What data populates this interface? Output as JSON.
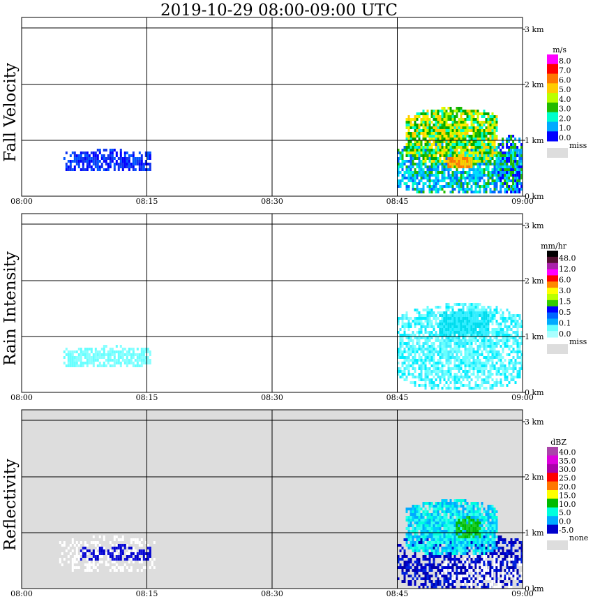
{
  "title": "2019-10-29   08:00-09:00 UTC",
  "chart_data": [
    {
      "type": "heatmap",
      "name": "Fall Velocity",
      "ylabel": "Fall Velocity",
      "background": "#ffffff",
      "x_ticks": [
        "08:00",
        "08:15",
        "08:30",
        "08:45",
        "09:00"
      ],
      "y_ticks": [
        "0 km",
        "1 km",
        "2 km",
        "3 km"
      ],
      "ylim_km": [
        0,
        3.5
      ],
      "grid": true,
      "colorbar": {
        "unit": "m/s",
        "labels": [
          "8.0",
          "7.0",
          "6.0",
          "5.0",
          "4.0",
          "3.0",
          "2.0",
          "1.0",
          "0.0"
        ],
        "colors": [
          "#ff00ff",
          "#ff0000",
          "#ff7700",
          "#ffcc00",
          "#bbff00",
          "#22bb00",
          "#00ffcc",
          "#00aaff",
          "#0000ff"
        ],
        "missing_label": "miss",
        "missing_color": "#dddddd"
      },
      "regions": [
        {
          "t0": 5,
          "t1": 15.5,
          "h0": 0.45,
          "h1": 0.85,
          "colors": [
            "#0000ff",
            "#0055ff",
            "#1133ee"
          ],
          "density": 0.7
        },
        {
          "t0": 45,
          "t1": 60,
          "h0": 0.05,
          "h1": 1.0,
          "colors": [
            "#00aaff",
            "#00ffcc",
            "#22bb00",
            "#0066ff",
            "#00ddff"
          ],
          "density": 0.75
        },
        {
          "t0": 46,
          "t1": 57,
          "h0": 0.6,
          "h1": 1.6,
          "colors": [
            "#22bb00",
            "#bbff00",
            "#ffcc00",
            "#00ffcc",
            "#ffee00",
            "#00aa00"
          ],
          "density": 0.85
        },
        {
          "t0": 51,
          "t1": 54,
          "h0": 0.5,
          "h1": 0.75,
          "colors": [
            "#ff7700",
            "#ffcc00"
          ],
          "density": 0.9
        },
        {
          "t0": 57,
          "t1": 60,
          "h0": 0.05,
          "h1": 1.1,
          "colors": [
            "#0000ff",
            "#00aaff",
            "#22bb00"
          ],
          "density": 0.6
        }
      ]
    },
    {
      "type": "heatmap",
      "name": "Rain Intensity",
      "ylabel": "Rain Intensity",
      "background": "#ffffff",
      "x_ticks": [
        "08:00",
        "08:15",
        "08:30",
        "08:45",
        "09:00"
      ],
      "y_ticks": [
        "0 km",
        "1 km",
        "2 km",
        "3 km"
      ],
      "ylim_km": [
        0,
        3.5
      ],
      "grid": true,
      "colorbar": {
        "unit": "mm/hr",
        "labels": [
          "48.0",
          "12.0",
          "6.0",
          "3.0",
          "1.5",
          "0.5",
          "0.1",
          "0.0"
        ],
        "colors": [
          "#000000",
          "#551133",
          "#aa22aa",
          "#ff00ff",
          "#ff0000",
          "#ff8800",
          "#ffff00",
          "#bbff00",
          "#33cc00",
          "#0000ff",
          "#0066ff",
          "#00aaff",
          "#66ffff",
          "#aaffff"
        ],
        "missing_label": "miss",
        "missing_color": "#dddddd"
      },
      "regions": [
        {
          "t0": 5,
          "t1": 15.5,
          "h0": 0.45,
          "h1": 0.85,
          "colors": [
            "#66ffff",
            "#88ffff"
          ],
          "density": 0.7
        },
        {
          "t0": 45,
          "t1": 60,
          "h0": 0.05,
          "h1": 1.6,
          "colors": [
            "#66ffff",
            "#88ffff",
            "#00eeff",
            "#44eeff"
          ],
          "density": 0.7
        },
        {
          "t0": 50,
          "t1": 56,
          "h0": 1.0,
          "h1": 1.5,
          "colors": [
            "#00ddee",
            "#33eeff"
          ],
          "density": 0.9
        }
      ]
    },
    {
      "type": "heatmap",
      "name": "Reflectivity",
      "ylabel": "Reflectivity",
      "background": "#dddddd",
      "x_ticks": [
        "08:00",
        "08:15",
        "08:30",
        "08:45",
        "09:00"
      ],
      "y_ticks": [
        "0 km",
        "1 km",
        "2 km",
        "3 km"
      ],
      "ylim_km": [
        0,
        3.5
      ],
      "grid": true,
      "colorbar": {
        "unit": "dBZ",
        "labels": [
          "40.0",
          "35.0",
          "30.0",
          "25.0",
          "20.0",
          "15.0",
          "10.0",
          "5.0",
          "0.0",
          "-5.0"
        ],
        "colors": [
          "#aa44aa",
          "#dd00dd",
          "#aa00aa",
          "#ff0000",
          "#ff7700",
          "#ffff00",
          "#00bb00",
          "#00ffdd",
          "#00aaff",
          "#0000cc"
        ],
        "missing_label": "none",
        "missing_color": "#dddddd"
      },
      "regions": [
        {
          "t0": 4.5,
          "t1": 16,
          "h0": 0.3,
          "h1": 0.95,
          "colors": [
            "#ffffff"
          ],
          "density": 0.35
        },
        {
          "t0": 7,
          "t1": 15.5,
          "h0": 0.5,
          "h1": 0.8,
          "colors": [
            "#0000cc",
            "#1111dd"
          ],
          "density": 0.5
        },
        {
          "t0": 45,
          "t1": 60,
          "h0": 0.0,
          "h1": 1.0,
          "colors": [
            "#0000cc",
            "#0000aa",
            "#0022dd"
          ],
          "density": 0.6
        },
        {
          "t0": 46,
          "t1": 57,
          "h0": 0.6,
          "h1": 1.6,
          "colors": [
            "#00ffdd",
            "#00aaff",
            "#33ffee",
            "#00ccff"
          ],
          "density": 0.85
        },
        {
          "t0": 52,
          "t1": 55,
          "h0": 0.9,
          "h1": 1.3,
          "colors": [
            "#00bb00",
            "#22cc22"
          ],
          "density": 0.85
        },
        {
          "t0": 50,
          "t1": 60,
          "h0": 0.0,
          "h1": 0.6,
          "colors": [
            "#ffffff"
          ],
          "density": 0.3
        }
      ]
    }
  ]
}
